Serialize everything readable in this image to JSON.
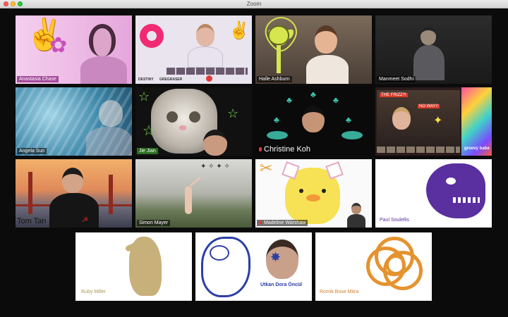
{
  "window": {
    "title": "Zoom"
  },
  "participants": [
    {
      "name": "Anastasia Chase"
    },
    {
      "name": ""
    },
    {
      "name": "Halle Ashburn"
    },
    {
      "name": "Manmeet Sodhi"
    },
    {
      "name": "Angela Sun"
    },
    {
      "name": "Jie Jian"
    },
    {
      "name": "Christine Koh"
    },
    {
      "name": ""
    },
    {
      "name": "Tom Tan"
    },
    {
      "name": "Simon Mayer"
    },
    {
      "name": "Madeline Warshaw"
    },
    {
      "name": "Paul Soulellis"
    },
    {
      "name": "Ruby Miller"
    },
    {
      "name": "Utkan Dora Öncül"
    },
    {
      "name": "Romik Bose Mitra"
    }
  ],
  "tile_text": {
    "destiny": "DESTINY",
    "gregraser": "GREGRASER",
    "frizz": "THE FRIZZ?!",
    "no_way": "NO WAY!!",
    "groovy": "groovy babe"
  },
  "colors": {
    "accent_purple": "#5a2fa0",
    "gold": "#c7b07a",
    "orange": "#e5932f",
    "pink": "#e7a3dd",
    "blue_line": "#2a3fa6"
  }
}
